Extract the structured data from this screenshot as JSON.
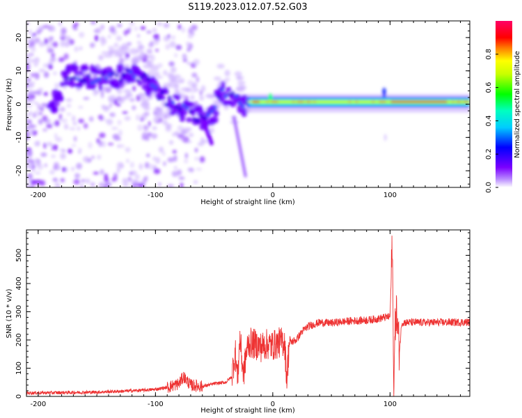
{
  "figure": {
    "title": "S119.2023.012.07.52.G03"
  },
  "chart_data": [
    {
      "type": "heatmap",
      "xlabel": "Height of straight line (km)",
      "ylabel": "Frequency (Hz)",
      "xlim": [
        -210,
        168
      ],
      "ylim": [
        -25,
        25
      ],
      "x_ticks": [
        -200,
        -100,
        0,
        100
      ],
      "y_ticks": [
        -20,
        -10,
        0,
        10,
        20
      ],
      "grid": false,
      "colorbar": {
        "label": "Normalized spectral amplitude",
        "ticks": [
          0.0,
          0.2,
          0.4,
          0.6,
          0.8
        ],
        "range": [
          0,
          1
        ],
        "colormap": [
          "#ffffff",
          "#7b00ff",
          "#0000ff",
          "#00ffff",
          "#00ff00",
          "#ffff00",
          "#ff0000",
          "#ff00a0"
        ]
      },
      "ridge_trace": {
        "x": [
          -180,
          -160,
          -140,
          -120,
          -110,
          -100,
          -90,
          -80,
          -70,
          -60,
          -50,
          -45,
          -40,
          -35,
          -30,
          -25,
          -20,
          -10,
          0,
          10,
          20,
          40,
          60,
          80,
          95,
          100,
          120,
          140,
          168
        ],
        "y": [
          9,
          8,
          7.5,
          9,
          8,
          4,
          1,
          -1,
          -3,
          -4,
          -3,
          5,
          2,
          3,
          2,
          -1,
          0,
          0,
          1.5,
          0.5,
          0.5,
          0.5,
          0.5,
          0.7,
          3,
          0.8,
          0.8,
          0.8,
          1
        ]
      }
    },
    {
      "type": "line",
      "xlabel": "Height of straight line (km)",
      "ylabel": "SNR (10 * v/v)",
      "xlim": [
        -210,
        168
      ],
      "ylim": [
        0,
        590
      ],
      "x_ticks": [
        -200,
        -100,
        0,
        100
      ],
      "y_ticks": [
        0,
        100,
        200,
        300,
        400,
        500
      ],
      "grid": false,
      "series": [
        {
          "color": "#ee3333",
          "x": [
            -210,
            -190,
            -170,
            -150,
            -130,
            -110,
            -100,
            -90,
            -80,
            -76,
            -70,
            -60,
            -50,
            -40,
            -35,
            -32,
            -30,
            -28,
            -25,
            -22,
            -20,
            -15,
            -10,
            -5,
            0,
            5,
            10,
            12,
            14,
            20,
            25,
            30,
            40,
            50,
            60,
            70,
            80,
            90,
            95,
            100,
            102,
            103,
            105,
            108,
            110,
            120,
            140,
            168
          ],
          "y": [
            12,
            13,
            14,
            15,
            18,
            22,
            25,
            32,
            45,
            70,
            40,
            35,
            45,
            50,
            70,
            160,
            60,
            210,
            75,
            170,
            190,
            185,
            175,
            185,
            180,
            190,
            195,
            60,
            190,
            200,
            230,
            248,
            262,
            260,
            265,
            268,
            270,
            275,
            280,
            282,
            560,
            30,
            320,
            160,
            262,
            262,
            262,
            263
          ]
        }
      ]
    }
  ]
}
